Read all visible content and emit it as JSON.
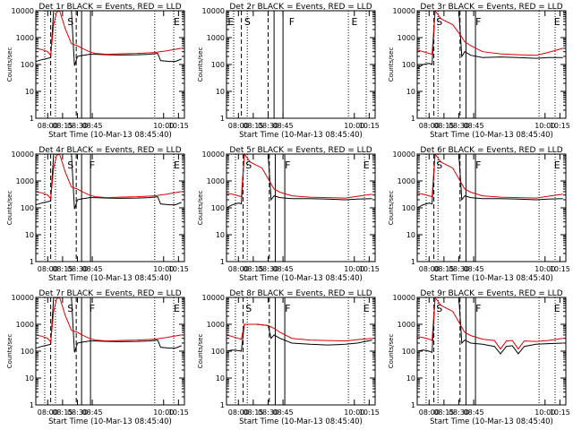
{
  "chart_data": {
    "type": "line",
    "layout": "grid",
    "rows": 3,
    "cols": 3,
    "xlabel": "Start Time (10-Mar-13 08:45:40)",
    "ylabel": "Counts/sec",
    "xticks": [
      "08:00",
      "08:15",
      "08:30",
      "08:45",
      "10:00",
      "10:15"
    ],
    "yticks": [
      "1",
      "10",
      "100",
      "1000",
      "10000"
    ],
    "yscale": "log",
    "ylim": [
      1,
      10000
    ],
    "xlim": [
      7.8,
      10.3
    ],
    "grid": false,
    "series_colors": {
      "events": "#000000",
      "lld": "#dd0000"
    },
    "panels": [
      {
        "title": "Det 1r BLACK = Events, RED = LLD",
        "flags": [
          {
            "x": 8.33,
            "label": "S"
          },
          {
            "x": 10.12,
            "label": "E"
          }
        ],
        "dashed_lines": [
          8.05,
          8.48
        ],
        "solid_lines": [
          8.57,
          8.72
        ],
        "dotted_lines": [
          7.95,
          8.13,
          9.8,
          10.12
        ],
        "events": {
          "x": [
            7.8,
            7.9,
            8.0,
            8.05,
            8.1,
            8.2,
            8.3,
            8.4,
            8.45,
            8.5,
            8.55,
            8.6,
            8.7,
            8.8,
            9.0,
            9.2,
            9.5,
            9.7,
            9.85,
            9.9,
            10.05,
            10.15,
            10.25
          ],
          "y": [
            130,
            150,
            170,
            180,
            10000,
            10000,
            10000,
            10000,
            90,
            200,
            210,
            220,
            240,
            240,
            230,
            225,
            230,
            240,
            260,
            140,
            130,
            130,
            160
          ]
        },
        "lld": {
          "x": [
            7.8,
            7.9,
            8.0,
            8.05,
            8.1,
            8.15,
            8.2,
            8.3,
            8.4,
            8.5,
            8.6,
            8.7,
            8.8,
            9.0,
            9.2,
            9.5,
            9.8,
            10.0,
            10.25
          ],
          "y": [
            400,
            360,
            300,
            220,
            3000,
            9000,
            10000,
            2000,
            600,
            500,
            380,
            300,
            260,
            240,
            250,
            260,
            280,
            320,
            400
          ]
        }
      },
      {
        "title": "Det 2r BLACK = Events, RED = LLD",
        "flags": [
          {
            "x": 7.82,
            "label": "E"
          },
          {
            "x": 8.1,
            "label": "S"
          },
          {
            "x": 8.85,
            "label": "F"
          },
          {
            "x": 9.9,
            "label": "E"
          }
        ],
        "dashed_lines": [
          8.05,
          8.5
        ],
        "solid_lines": [
          8.6,
          8.75
        ],
        "dotted_lines": [
          7.92,
          8.15,
          9.85,
          10.15
        ],
        "events": {
          "x": [],
          "y": []
        },
        "lld": {
          "x": [],
          "y": []
        }
      },
      {
        "title": "Det 3r BLACK = Events, RED = LLD",
        "flags": [
          {
            "x": 8.12,
            "label": "S"
          },
          {
            "x": 8.78,
            "label": "F"
          },
          {
            "x": 10.1,
            "label": "E"
          }
        ],
        "dashed_lines": [
          8.08,
          8.52
        ],
        "solid_lines": [
          8.62,
          8.78
        ],
        "dotted_lines": [
          7.95,
          8.15,
          9.85,
          10.12
        ],
        "events": {
          "x": [
            7.8,
            7.9,
            8.0,
            8.05,
            8.1,
            8.3,
            8.5,
            8.55,
            8.6,
            8.7,
            8.9,
            9.2,
            9.5,
            9.8,
            10.0,
            10.25
          ],
          "y": [
            70,
            100,
            110,
            100,
            10000,
            10000,
            10000,
            200,
            300,
            220,
            180,
            190,
            180,
            170,
            180,
            180
          ]
        },
        "lld": {
          "x": [
            7.8,
            7.9,
            8.0,
            8.05,
            8.1,
            8.2,
            8.4,
            8.5,
            8.6,
            8.7,
            8.9,
            9.2,
            9.5,
            9.8,
            10.0,
            10.25
          ],
          "y": [
            350,
            300,
            260,
            240,
            10000,
            5000,
            3000,
            1500,
            700,
            500,
            300,
            250,
            230,
            220,
            280,
            400
          ]
        }
      },
      {
        "title": "Det 4r BLACK = Events, RED = LLD",
        "flags": [
          {
            "x": 8.33,
            "label": "S"
          },
          {
            "x": 8.7,
            "label": "F"
          },
          {
            "x": 10.12,
            "label": "E"
          }
        ],
        "dashed_lines": [
          8.05,
          8.48
        ],
        "solid_lines": [
          8.57,
          8.72
        ],
        "dotted_lines": [
          7.95,
          8.13,
          9.8,
          10.12
        ],
        "events": {
          "x": [
            7.8,
            7.9,
            8.0,
            8.05,
            8.1,
            8.2,
            8.3,
            8.4,
            8.45,
            8.5,
            8.55,
            8.6,
            8.7,
            8.8,
            9.0,
            9.2,
            9.5,
            9.7,
            9.85,
            9.9,
            10.05,
            10.15,
            10.25
          ],
          "y": [
            130,
            150,
            170,
            180,
            10000,
            10000,
            10000,
            10000,
            90,
            200,
            210,
            220,
            240,
            240,
            230,
            225,
            230,
            240,
            260,
            140,
            130,
            130,
            160
          ]
        },
        "lld": {
          "x": [
            7.8,
            7.9,
            8.0,
            8.05,
            8.1,
            8.15,
            8.2,
            8.3,
            8.4,
            8.5,
            8.6,
            8.7,
            8.8,
            9.0,
            9.2,
            9.5,
            9.8,
            10.0,
            10.25
          ],
          "y": [
            400,
            360,
            300,
            220,
            3000,
            9000,
            10000,
            2000,
            600,
            500,
            380,
            300,
            260,
            240,
            250,
            260,
            280,
            320,
            400
          ]
        }
      },
      {
        "title": "Det 5r BLACK = Events, RED = LLD",
        "flags": [
          {
            "x": 8.12,
            "label": "S"
          },
          {
            "x": 8.78,
            "label": "F"
          },
          {
            "x": 10.1,
            "label": "E"
          }
        ],
        "dashed_lines": [
          8.08,
          8.52
        ],
        "solid_lines": [
          8.62,
          8.78
        ],
        "dotted_lines": [
          7.95,
          8.15,
          9.85,
          10.12
        ],
        "events": {
          "x": [
            7.8,
            7.9,
            8.0,
            8.05,
            8.1,
            8.3,
            8.5,
            8.55,
            8.6,
            8.7,
            8.9,
            9.2,
            9.5,
            9.8,
            10.0,
            10.25
          ],
          "y": [
            100,
            130,
            150,
            140,
            10000,
            10000,
            10000,
            200,
            280,
            240,
            220,
            220,
            210,
            200,
            210,
            220
          ]
        },
        "lld": {
          "x": [
            7.8,
            7.9,
            8.0,
            8.05,
            8.1,
            8.2,
            8.4,
            8.5,
            8.6,
            8.7,
            8.9,
            9.2,
            9.5,
            9.8,
            10.0,
            10.25
          ],
          "y": [
            350,
            320,
            280,
            260,
            10000,
            5000,
            3000,
            1200,
            500,
            380,
            280,
            250,
            240,
            230,
            270,
            320
          ]
        }
      },
      {
        "title": "Det 6r BLACK = Events, RED = LLD",
        "flags": [
          {
            "x": 8.12,
            "label": "S"
          },
          {
            "x": 8.78,
            "label": "F"
          },
          {
            "x": 10.1,
            "label": "E"
          }
        ],
        "dashed_lines": [
          8.08,
          8.52
        ],
        "solid_lines": [
          8.62,
          8.78
        ],
        "dotted_lines": [
          7.95,
          8.15,
          9.85,
          10.12
        ],
        "events": {
          "x": [
            7.8,
            7.9,
            8.0,
            8.05,
            8.1,
            8.3,
            8.5,
            8.55,
            8.6,
            8.7,
            8.9,
            9.2,
            9.5,
            9.8,
            10.0,
            10.25
          ],
          "y": [
            100,
            130,
            150,
            140,
            10000,
            10000,
            10000,
            200,
            280,
            240,
            220,
            220,
            210,
            200,
            210,
            220
          ]
        },
        "lld": {
          "x": [
            7.8,
            7.9,
            8.0,
            8.05,
            8.1,
            8.2,
            8.4,
            8.5,
            8.6,
            8.7,
            8.9,
            9.2,
            9.5,
            9.8,
            10.0,
            10.25
          ],
          "y": [
            350,
            320,
            280,
            260,
            10000,
            5000,
            3000,
            1200,
            500,
            380,
            280,
            250,
            240,
            230,
            270,
            320
          ]
        }
      },
      {
        "title": "Det 7r BLACK = Events, RED = LLD",
        "flags": [
          {
            "x": 8.33,
            "label": "S"
          },
          {
            "x": 8.7,
            "label": "F"
          },
          {
            "x": 10.12,
            "label": "E"
          }
        ],
        "dashed_lines": [
          8.05,
          8.48
        ],
        "solid_lines": [
          8.57,
          8.72
        ],
        "dotted_lines": [
          7.95,
          8.13,
          9.8,
          10.12
        ],
        "events": {
          "x": [
            7.8,
            7.9,
            8.0,
            8.05,
            8.1,
            8.2,
            8.3,
            8.4,
            8.45,
            8.5,
            8.55,
            8.6,
            8.7,
            8.8,
            9.0,
            9.2,
            9.5,
            9.7,
            9.85,
            9.9,
            10.05,
            10.15,
            10.25
          ],
          "y": [
            130,
            150,
            170,
            180,
            10000,
            10000,
            10000,
            10000,
            90,
            200,
            210,
            220,
            240,
            240,
            230,
            225,
            230,
            240,
            260,
            140,
            130,
            130,
            160
          ]
        },
        "lld": {
          "x": [
            7.8,
            7.9,
            8.0,
            8.05,
            8.1,
            8.15,
            8.2,
            8.3,
            8.4,
            8.5,
            8.6,
            8.7,
            8.8,
            9.0,
            9.2,
            9.5,
            9.8,
            10.0,
            10.25
          ],
          "y": [
            400,
            360,
            300,
            220,
            3000,
            9000,
            10000,
            2000,
            600,
            500,
            380,
            300,
            260,
            240,
            250,
            260,
            280,
            320,
            400
          ]
        }
      },
      {
        "title": "Det 8r BLACK = Events, RED = LLD",
        "flags": [
          {
            "x": 8.12,
            "label": "S"
          },
          {
            "x": 8.78,
            "label": "F"
          },
          {
            "x": 10.1,
            "label": "E"
          }
        ],
        "dashed_lines": [
          8.08,
          8.52
        ],
        "solid_lines": [
          8.62,
          8.78
        ],
        "dotted_lines": [
          7.95,
          8.15,
          9.85,
          10.12
        ],
        "events": {
          "x": [
            7.8,
            7.9,
            8.0,
            8.05,
            8.1,
            8.3,
            8.5,
            8.55,
            8.6,
            8.7,
            8.9,
            9.2,
            9.5,
            9.8,
            10.0,
            10.25
          ],
          "y": [
            100,
            110,
            105,
            100,
            1000,
            1000,
            900,
            300,
            400,
            300,
            200,
            180,
            170,
            180,
            200,
            260
          ]
        },
        "lld": {
          "x": [
            7.8,
            7.9,
            8.0,
            8.05,
            8.1,
            8.3,
            8.5,
            8.6,
            8.7,
            8.9,
            9.2,
            9.5,
            9.8,
            10.0,
            10.25
          ],
          "y": [
            400,
            350,
            300,
            280,
            1000,
            1000,
            900,
            700,
            500,
            300,
            260,
            250,
            240,
            270,
            300
          ]
        }
      },
      {
        "title": "Det 9r BLACK = Events, RED = LLD",
        "flags": [
          {
            "x": 8.12,
            "label": "S"
          },
          {
            "x": 8.78,
            "label": "F"
          },
          {
            "x": 10.1,
            "label": "E"
          }
        ],
        "dashed_lines": [
          8.08,
          8.52
        ],
        "solid_lines": [
          8.62,
          8.78
        ],
        "dotted_lines": [
          7.95,
          8.15,
          9.85,
          10.12
        ],
        "events": {
          "x": [
            7.8,
            7.9,
            8.0,
            8.05,
            8.1,
            8.3,
            8.5,
            8.55,
            8.6,
            8.7,
            8.9,
            9.1,
            9.2,
            9.3,
            9.4,
            9.5,
            9.6,
            9.8,
            10.0,
            10.25
          ],
          "y": [
            100,
            110,
            100,
            90,
            10000,
            10000,
            10000,
            200,
            260,
            200,
            180,
            150,
            80,
            150,
            160,
            80,
            150,
            180,
            190,
            200
          ]
        },
        "lld": {
          "x": [
            7.8,
            7.9,
            8.0,
            8.05,
            8.1,
            8.2,
            8.4,
            8.5,
            8.6,
            8.7,
            8.9,
            9.1,
            9.2,
            9.3,
            9.4,
            9.5,
            9.6,
            9.8,
            10.0,
            10.25
          ],
          "y": [
            350,
            320,
            280,
            250,
            10000,
            5000,
            3000,
            1200,
            500,
            380,
            280,
            250,
            120,
            240,
            250,
            120,
            240,
            230,
            250,
            300
          ]
        }
      }
    ]
  }
}
